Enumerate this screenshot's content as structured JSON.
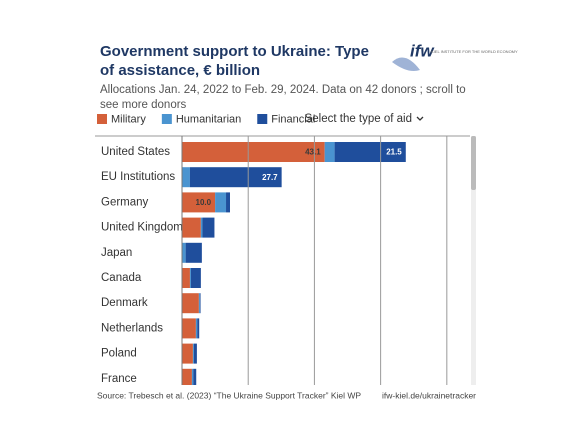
{
  "logo": {
    "mark": "ifw",
    "name": "KIEL INSTITUTE FOR THE WORLD ECONOMY"
  },
  "chart_data": {
    "type": "bar",
    "orientation": "horizontal",
    "stacked": true,
    "title": "Government support to Ukraine:  Type of assistance, € billion",
    "subtitle": "Allocations Jan. 24, 2022 to Feb. 29, 2024. Data on 42 donors ; scroll to see more donors",
    "dropdown": "Select the type of aid",
    "categories": [
      "United States",
      "EU Institutions",
      "Germany",
      "United Kingdom",
      "Japan",
      "Canada",
      "Denmark",
      "Netherlands",
      "Poland",
      "France"
    ],
    "series": [
      {
        "name": "Military",
        "color": "#d4603a",
        "values": [
          43.1,
          0,
          10.0,
          5.7,
          0,
          2.4,
          5.1,
          4.2,
          3.3,
          3.0
        ],
        "value_labels": [
          "43.1",
          null,
          "10.0",
          null,
          null,
          null,
          null,
          null,
          null,
          null
        ]
      },
      {
        "name": "Humanitarian",
        "color": "#4a94d0",
        "values": [
          3.0,
          2.4,
          3.3,
          0.5,
          1.1,
          0.3,
          0.3,
          0.4,
          0.3,
          0.4
        ],
        "value_labels": [
          null,
          null,
          null,
          null,
          null,
          null,
          null,
          null,
          null,
          null
        ]
      },
      {
        "name": "Financial",
        "color": "#1f4e9c",
        "values": [
          21.5,
          27.7,
          1.2,
          3.6,
          4.9,
          3.0,
          0.2,
          0.6,
          0.9,
          0.9
        ],
        "value_labels": [
          "21.5",
          "27.7",
          null,
          null,
          null,
          null,
          null,
          null,
          null,
          null
        ]
      }
    ],
    "xlim": [
      0,
      87
    ],
    "xticks": [
      0,
      20,
      40,
      60,
      80
    ],
    "grid": true,
    "legend": "top-left",
    "source": "Source: Trebesch et al. (2023) “The Ukraine Support Tracker” Kiel WP",
    "link": "ifw-kiel.de/ukrainetracker"
  }
}
